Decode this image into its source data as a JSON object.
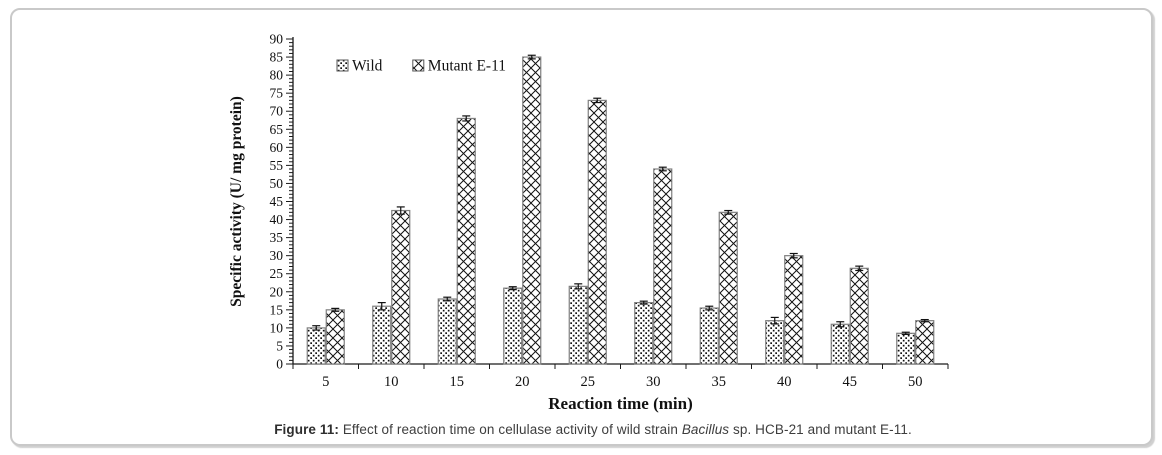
{
  "figure": {
    "caption": {
      "label": "Figure 11:",
      "text_before_italic": " Effect of reaction time on cellulase activity of wild strain ",
      "italic": "Bacillus",
      "text_after_italic": " sp. HCB-21 and mutant E-11."
    }
  },
  "colors": {
    "axis": "#1a1a1a",
    "bar_outline": "#7f7f7f",
    "pattern_ink": "#111111",
    "panel_border": "#c9c9c9",
    "error_bar": "#111111"
  },
  "chart_data": {
    "type": "bar",
    "title": "",
    "xlabel": "Reaction time (min)",
    "ylabel": "Specific activity (U/ mg protein)",
    "categories": [
      "5",
      "10",
      "15",
      "20",
      "25",
      "30",
      "35",
      "40",
      "45",
      "50"
    ],
    "series": [
      {
        "name": "Wild",
        "pattern": "dots",
        "values": [
          10,
          16,
          18,
          21,
          21.5,
          17,
          15.5,
          12,
          11,
          8.5
        ],
        "errors": [
          0.6,
          1.0,
          0.5,
          0.4,
          0.7,
          0.4,
          0.5,
          0.9,
          0.7,
          0.3
        ]
      },
      {
        "name": "Mutant E-11",
        "pattern": "crosshatch",
        "values": [
          15,
          42.5,
          68,
          85,
          73,
          54,
          42,
          30,
          26.5,
          12
        ],
        "errors": [
          0.4,
          1.0,
          0.7,
          0.5,
          0.6,
          0.5,
          0.5,
          0.6,
          0.6,
          0.3
        ]
      }
    ],
    "ylim": [
      0,
      90
    ],
    "ytick_step": 5,
    "yminor_step": 1,
    "grid": false,
    "legend_position": "top-left-inside"
  }
}
